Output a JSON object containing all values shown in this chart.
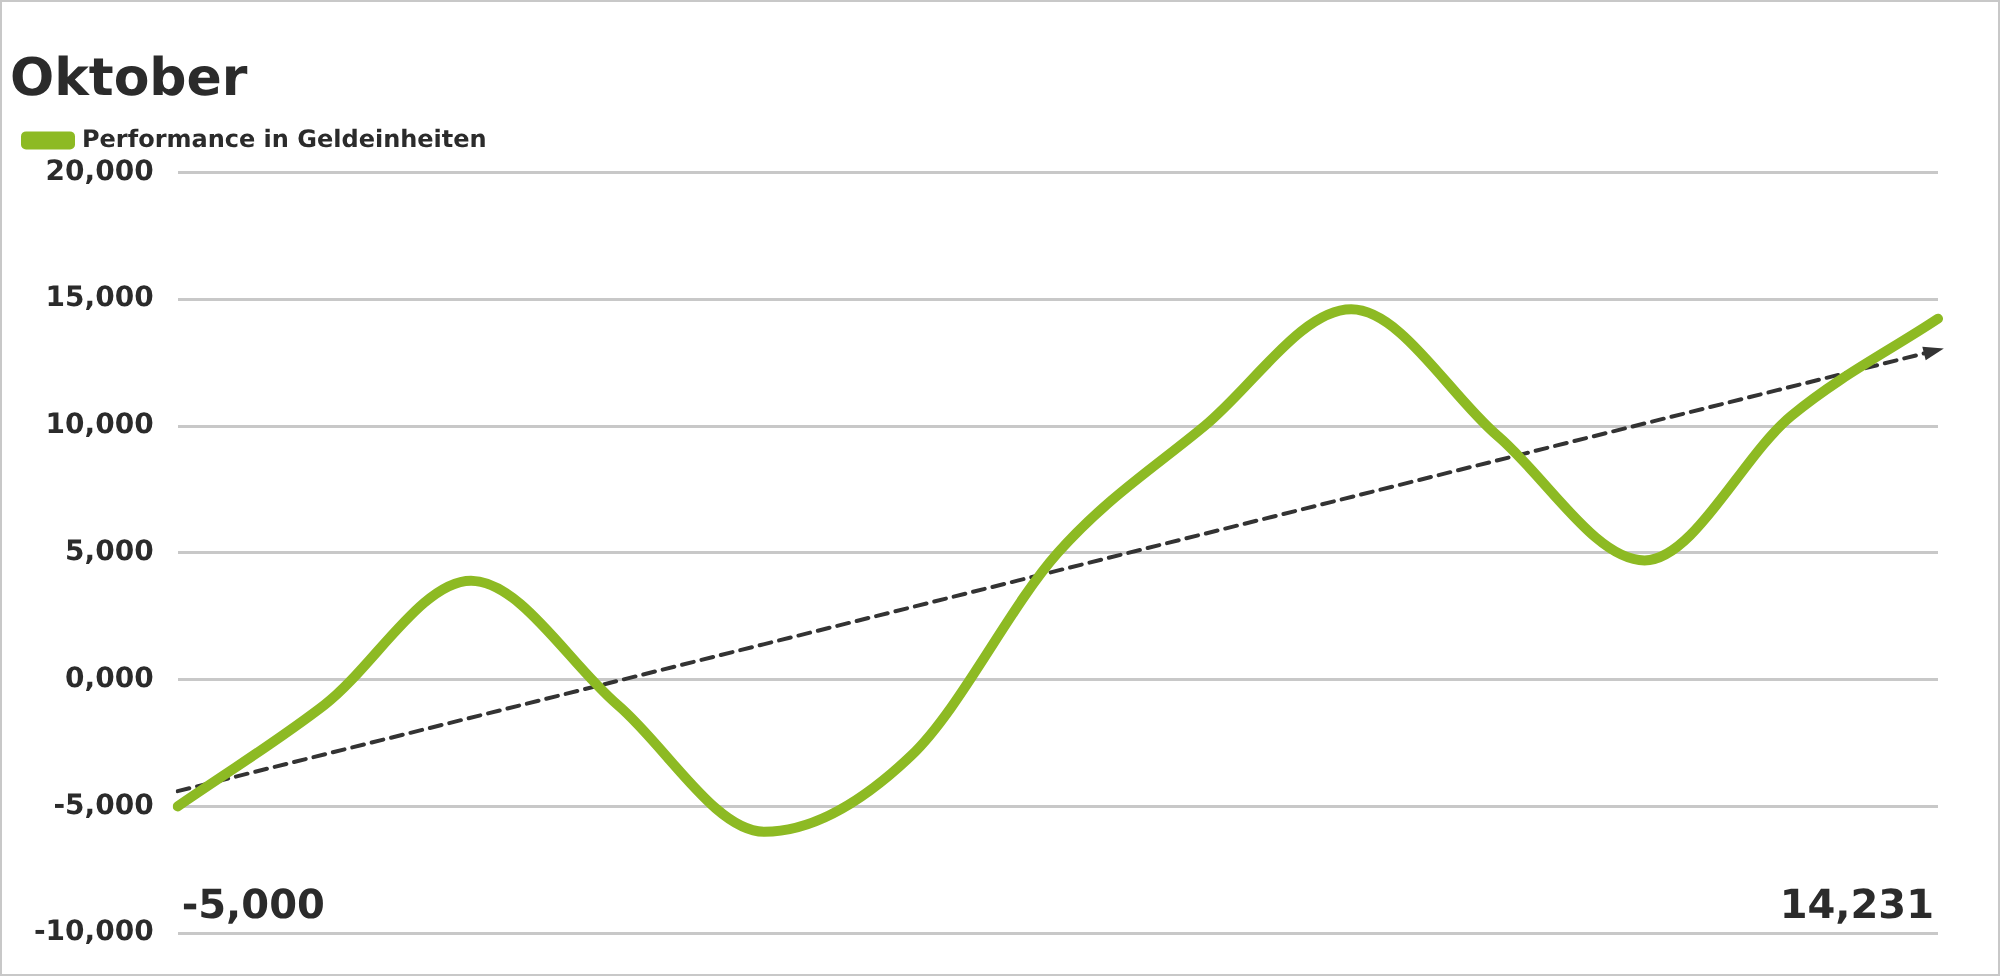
{
  "chart_data": {
    "type": "line",
    "title": "Oktober",
    "categories": [
      null,
      null,
      null,
      null,
      null,
      null,
      null,
      null,
      null,
      null,
      null,
      null,
      null
    ],
    "series": [
      {
        "name": "Performance in Geldeinheiten",
        "color": "#8dba23",
        "values": [
          -5000,
          -1000,
          3900,
          -1000,
          -6000,
          -3000,
          5000,
          10000,
          14600,
          9600,
          4700,
          10400,
          14231
        ]
      },
      {
        "type": "line",
        "color": "#333333",
        "line_style": "dashed",
        "values": [
          -4400,
          null,
          null,
          null,
          null,
          null,
          null,
          null,
          null,
          null,
          null,
          null,
          13000
        ]
      }
    ],
    "ylim": [
      -10000,
      20000
    ],
    "yticks": [
      {
        "value": -10000,
        "label": "-10,000"
      },
      {
        "value": -5000,
        "label": "-5,000"
      },
      {
        "value": 0,
        "label": "0,000"
      },
      {
        "value": 5000,
        "label": "5,000"
      },
      {
        "value": 10000,
        "label": "10,000"
      },
      {
        "value": 15000,
        "label": "15,000"
      },
      {
        "value": 20000,
        "label": "20,000"
      }
    ],
    "grid": "y",
    "legend": "top left",
    "tick_labels": "y",
    "annotations": [
      "-5,000",
      "14,231"
    ]
  }
}
